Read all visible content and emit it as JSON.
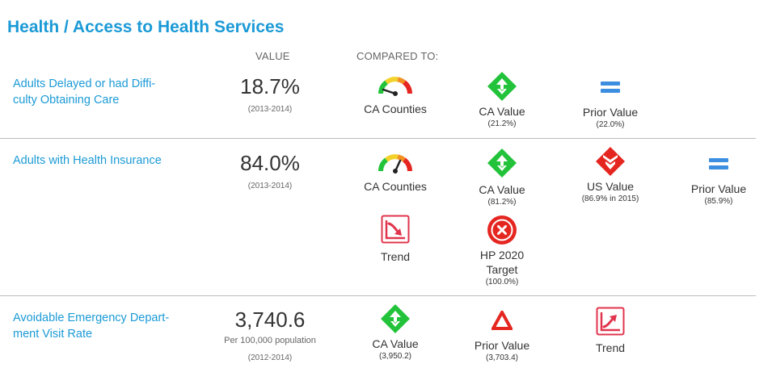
{
  "page": {
    "title": "Health / Access to Health Services"
  },
  "headers": {
    "value": "VALUE",
    "compared_to": "COMPARED TO:"
  },
  "indicators": [
    {
      "name": "Adults Delayed or had Difficulty Obtaining Care",
      "name_line1": "Adults Delayed or had Diffi-",
      "name_line2": "culty Obtaining Care",
      "value": "18.7%",
      "period": "(2013-2014)",
      "comparisons": [
        {
          "icon": "gauge-icon",
          "label": "CA Counties",
          "value": "",
          "needle": "low"
        },
        {
          "icon": "green-diamond-icon",
          "label": "CA Value",
          "value": "(21.2%)"
        },
        {
          "icon": "equals-icon",
          "label": "Prior Value",
          "value": "(22.0%)"
        }
      ]
    },
    {
      "name": "Adults with Health Insurance",
      "value": "84.0%",
      "period": "(2013-2014)",
      "comparisons": [
        {
          "icon": "gauge-icon",
          "label": "CA Counties",
          "value": "",
          "needle": "mid-high"
        },
        {
          "icon": "green-diamond-icon",
          "label": "CA Value",
          "value": "(81.2%)"
        },
        {
          "icon": "red-diamond-icon",
          "label": "US Value",
          "value": "(86.9% in 2015)"
        },
        {
          "icon": "equals-icon",
          "label": "Prior Value",
          "value": "(85.9%)"
        },
        {
          "icon": "trend-down-icon",
          "label": "Trend",
          "value": ""
        },
        {
          "icon": "target-missed-icon",
          "label_line1": "HP 2020",
          "label_line2": "Target",
          "value": "(100.0%)"
        }
      ]
    },
    {
      "name": "Avoidable Emergency Department Visit Rate",
      "name_line1": "Avoidable Emergency Depart-",
      "name_line2": "ment Visit Rate",
      "value": "3,740.6",
      "unit": "Per 100,000 population",
      "period": "(2012-2014)",
      "comparisons": [
        {
          "icon": "green-diamond-icon",
          "label": "CA Value",
          "value": "(3,950.2)"
        },
        {
          "icon": "red-triangle-icon",
          "label": "Prior Value",
          "value": "(3,703.4)"
        },
        {
          "icon": "trend-up-icon",
          "label": "Trend",
          "value": ""
        }
      ]
    }
  ],
  "colors": {
    "accent": "#1b9ad6",
    "good": "#22c33a",
    "bad": "#e52620",
    "equal": "#3b8ee0",
    "trend": "#e1344c"
  }
}
